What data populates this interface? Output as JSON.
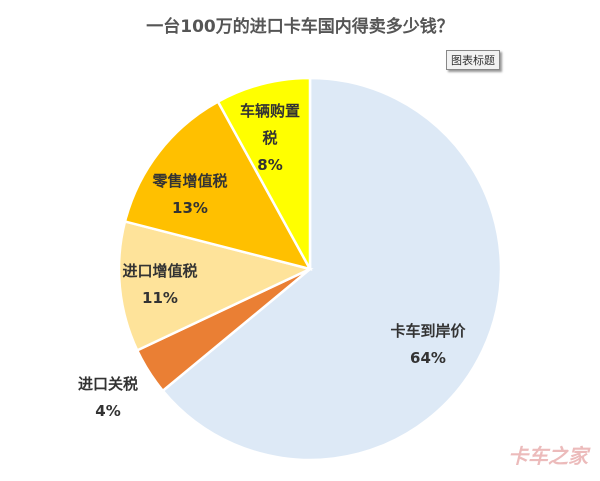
{
  "chart_data": {
    "type": "pie",
    "title": "一台100万的进口卡车国内得卖多少钱？",
    "annotations": [
      "图表标题"
    ],
    "watermark": "卡车之家",
    "categories": [
      "卡车到岸价",
      "进口关税",
      "进口增值税",
      "零售增值税",
      "车辆购置税"
    ],
    "values": [
      64,
      4,
      11,
      13,
      8
    ],
    "value_labels": [
      "64%",
      "4%",
      "11%",
      "13%",
      "8%"
    ],
    "colors": [
      "#dde9f6",
      "#ea7f34",
      "#fee39a",
      "#ffc000",
      "#ffff00"
    ]
  }
}
